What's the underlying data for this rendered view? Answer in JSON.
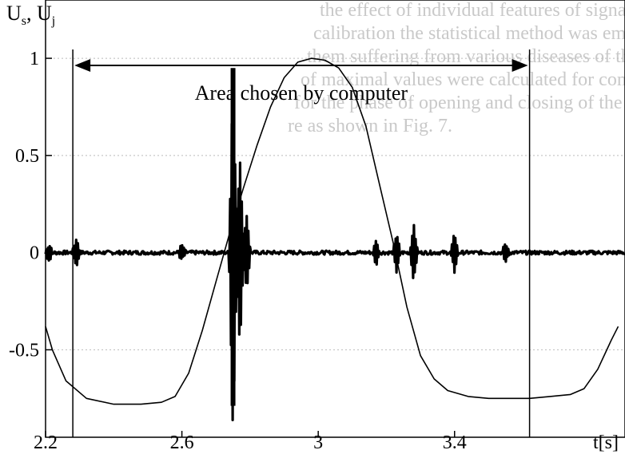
{
  "chart_data": {
    "type": "line",
    "ylabel": "U_s, U_j",
    "xlabel": "t[s]",
    "xlim": [
      2.2,
      3.9
    ],
    "ylim": [
      -0.95,
      1.3
    ],
    "grid": true,
    "x_ticks": [
      {
        "value": 2.2,
        "label": "2.2"
      },
      {
        "value": 2.6,
        "label": "2.6"
      },
      {
        "value": 3.0,
        "label": "3"
      },
      {
        "value": 3.4,
        "label": "3.4"
      }
    ],
    "y_ticks": [
      {
        "value": 1.0,
        "label": "1"
      },
      {
        "value": 0.5,
        "label": "0.5"
      },
      {
        "value": 0.0,
        "label": "0"
      },
      {
        "value": -0.5,
        "label": "-0.5"
      }
    ],
    "annotation": {
      "text": "Area chosen by computer",
      "x_start": 2.28,
      "x_end": 3.62
    },
    "series": [
      {
        "style": "thin",
        "x": [
          2.2,
          2.22,
          2.26,
          2.32,
          2.4,
          2.48,
          2.54,
          2.58,
          2.62,
          2.66,
          2.7,
          2.74,
          2.78,
          2.82,
          2.86,
          2.9,
          2.94,
          2.98,
          3.02,
          3.06,
          3.1,
          3.14,
          3.18,
          3.22,
          3.26,
          3.3,
          3.34,
          3.38,
          3.44,
          3.5,
          3.56,
          3.62,
          3.68,
          3.74,
          3.78,
          3.82,
          3.86,
          3.88
        ],
        "y": [
          -0.38,
          -0.5,
          -0.66,
          -0.75,
          -0.78,
          -0.78,
          -0.77,
          -0.74,
          -0.62,
          -0.4,
          -0.15,
          0.1,
          0.33,
          0.55,
          0.75,
          0.9,
          0.98,
          1.0,
          0.99,
          0.95,
          0.85,
          0.65,
          0.35,
          0.05,
          -0.28,
          -0.53,
          -0.65,
          -0.71,
          -0.74,
          -0.75,
          -0.75,
          -0.75,
          -0.74,
          -0.73,
          -0.7,
          -0.6,
          -0.45,
          -0.38
        ]
      },
      {
        "style": "thick",
        "baseline": 0.0,
        "bursts": [
          {
            "x": 2.21,
            "amp": 0.04
          },
          {
            "x": 2.29,
            "amp": 0.07
          },
          {
            "x": 2.6,
            "amp": 0.04
          },
          {
            "x": 2.75,
            "amp": 0.95
          },
          {
            "x": 2.77,
            "amp": 0.5
          },
          {
            "x": 2.79,
            "amp": 0.2
          },
          {
            "x": 3.17,
            "amp": 0.06
          },
          {
            "x": 3.23,
            "amp": 0.1
          },
          {
            "x": 3.28,
            "amp": 0.14
          },
          {
            "x": 3.4,
            "amp": 0.1
          },
          {
            "x": 3.55,
            "amp": 0.05
          }
        ]
      }
    ]
  },
  "background_text": {
    "lines": [
      "the effect of individual features of signals studied by...",
      "calibration the statistical method was employed for people who...",
      "them suffering from various diseases of the joint were recorded...",
      "of maximal values were calculated for complete cycle of the...",
      "for the phase of opening and closing of the mandible and for...",
      "re as shown in Fig. 7."
    ]
  }
}
